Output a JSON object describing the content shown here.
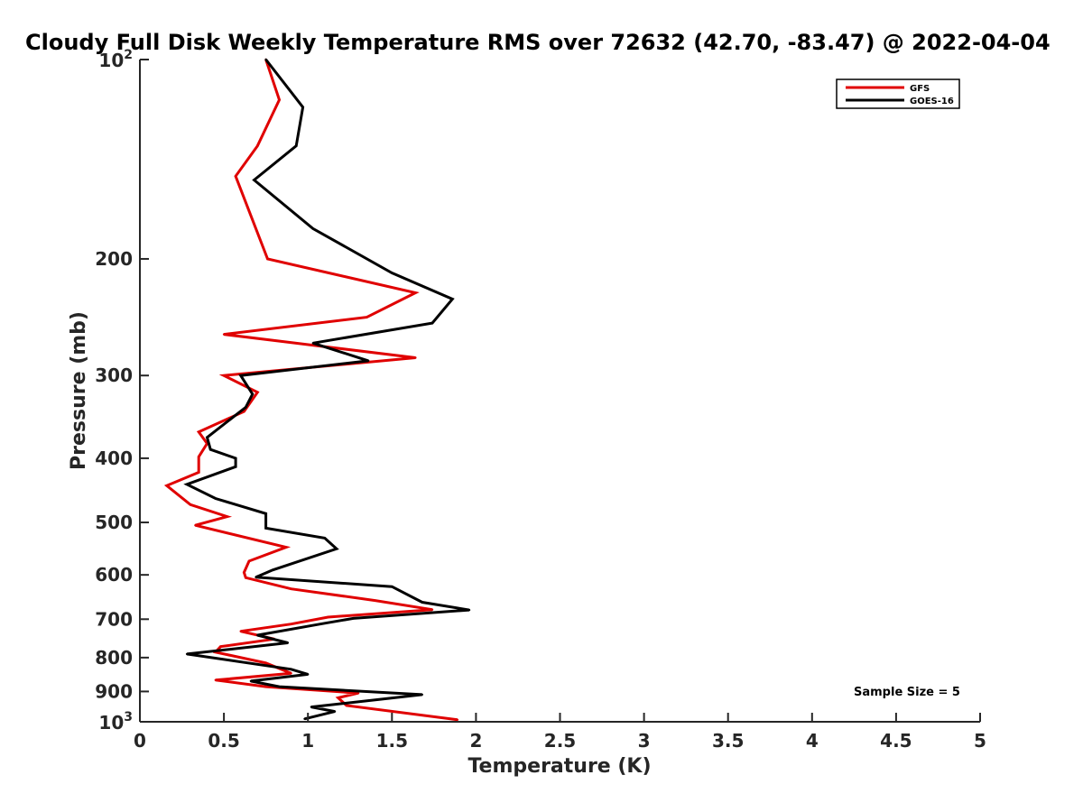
{
  "chart_data": {
    "type": "line",
    "title": "Cloudy Full Disk Weekly Temperature RMS over 72632 (42.70, -83.47) @ 2022-04-04",
    "xlabel": "Temperature (K)",
    "ylabel": "Pressure (mb)",
    "xlim": [
      0,
      5
    ],
    "ylim": [
      100,
      1000
    ],
    "y_scale": "log",
    "y_reversed": true,
    "grid": false,
    "legend_position": "top-right",
    "x_ticks": [
      "0",
      "0.5",
      "1",
      "1.5",
      "2",
      "2.5",
      "3",
      "3.5",
      "4",
      "4.5",
      "5"
    ],
    "y_ticks": [
      {
        "value": 100,
        "base": "10",
        "exp": "2",
        "text": ""
      },
      {
        "value": 200,
        "base": "",
        "exp": "",
        "text": "200"
      },
      {
        "value": 300,
        "base": "",
        "exp": "",
        "text": "300"
      },
      {
        "value": 400,
        "base": "",
        "exp": "",
        "text": "400"
      },
      {
        "value": 500,
        "base": "",
        "exp": "",
        "text": "500"
      },
      {
        "value": 600,
        "base": "",
        "exp": "",
        "text": "600"
      },
      {
        "value": 700,
        "base": "",
        "exp": "",
        "text": "700"
      },
      {
        "value": 800,
        "base": "",
        "exp": "",
        "text": "800"
      },
      {
        "value": 900,
        "base": "",
        "exp": "",
        "text": "900"
      },
      {
        "value": 1000,
        "base": "10",
        "exp": "3",
        "text": ""
      }
    ],
    "series": [
      {
        "name": "GFS",
        "color": "#e00000",
        "points": [
          [
            0.75,
            100
          ],
          [
            0.83,
            115
          ],
          [
            0.7,
            135
          ],
          [
            0.57,
            150
          ],
          [
            0.76,
            200
          ],
          [
            1.64,
            225
          ],
          [
            1.35,
            245
          ],
          [
            0.5,
            260
          ],
          [
            1.64,
            282
          ],
          [
            0.5,
            300
          ],
          [
            0.7,
            318
          ],
          [
            0.62,
            340
          ],
          [
            0.35,
            365
          ],
          [
            0.4,
            380
          ],
          [
            0.35,
            398
          ],
          [
            0.35,
            420
          ],
          [
            0.16,
            440
          ],
          [
            0.3,
            470
          ],
          [
            0.52,
            490
          ],
          [
            0.33,
            505
          ],
          [
            0.87,
            545
          ],
          [
            0.65,
            572
          ],
          [
            0.62,
            595
          ],
          [
            0.63,
            606
          ],
          [
            0.9,
            630
          ],
          [
            1.4,
            656
          ],
          [
            1.74,
            677
          ],
          [
            1.12,
            695
          ],
          [
            0.9,
            712
          ],
          [
            0.6,
            730
          ],
          [
            0.8,
            750
          ],
          [
            0.48,
            770
          ],
          [
            0.45,
            785
          ],
          [
            0.75,
            815
          ],
          [
            0.9,
            845
          ],
          [
            0.45,
            865
          ],
          [
            0.75,
            885
          ],
          [
            1.3,
            905
          ],
          [
            1.18,
            920
          ],
          [
            1.23,
            945
          ],
          [
            1.89,
            993
          ]
        ]
      },
      {
        "name": "GOES-16",
        "color": "#000000",
        "points": [
          [
            0.75,
            100
          ],
          [
            0.97,
            118
          ],
          [
            0.93,
            135
          ],
          [
            0.68,
            152
          ],
          [
            1.03,
            180
          ],
          [
            1.5,
            210
          ],
          [
            1.86,
            230
          ],
          [
            1.74,
            250
          ],
          [
            1.03,
            268
          ],
          [
            1.36,
            285
          ],
          [
            0.6,
            300
          ],
          [
            0.67,
            320
          ],
          [
            0.63,
            335
          ],
          [
            0.4,
            372
          ],
          [
            0.42,
            388
          ],
          [
            0.57,
            400
          ],
          [
            0.57,
            412
          ],
          [
            0.28,
            438
          ],
          [
            0.45,
            460
          ],
          [
            0.75,
            485
          ],
          [
            0.75,
            510
          ],
          [
            1.1,
            528
          ],
          [
            1.17,
            548
          ],
          [
            0.79,
            590
          ],
          [
            0.69,
            605
          ],
          [
            1.5,
            625
          ],
          [
            1.68,
            660
          ],
          [
            1.96,
            678
          ],
          [
            1.27,
            698
          ],
          [
            1.1,
            710
          ],
          [
            0.7,
            740
          ],
          [
            0.88,
            760
          ],
          [
            0.28,
            790
          ],
          [
            0.9,
            833
          ],
          [
            1.0,
            848
          ],
          [
            0.66,
            868
          ],
          [
            0.83,
            885
          ],
          [
            1.68,
            910
          ],
          [
            1.43,
            925
          ],
          [
            1.02,
            950
          ],
          [
            1.16,
            965
          ],
          [
            0.98,
            990
          ]
        ]
      }
    ],
    "annotation": "Sample Size = 5"
  }
}
